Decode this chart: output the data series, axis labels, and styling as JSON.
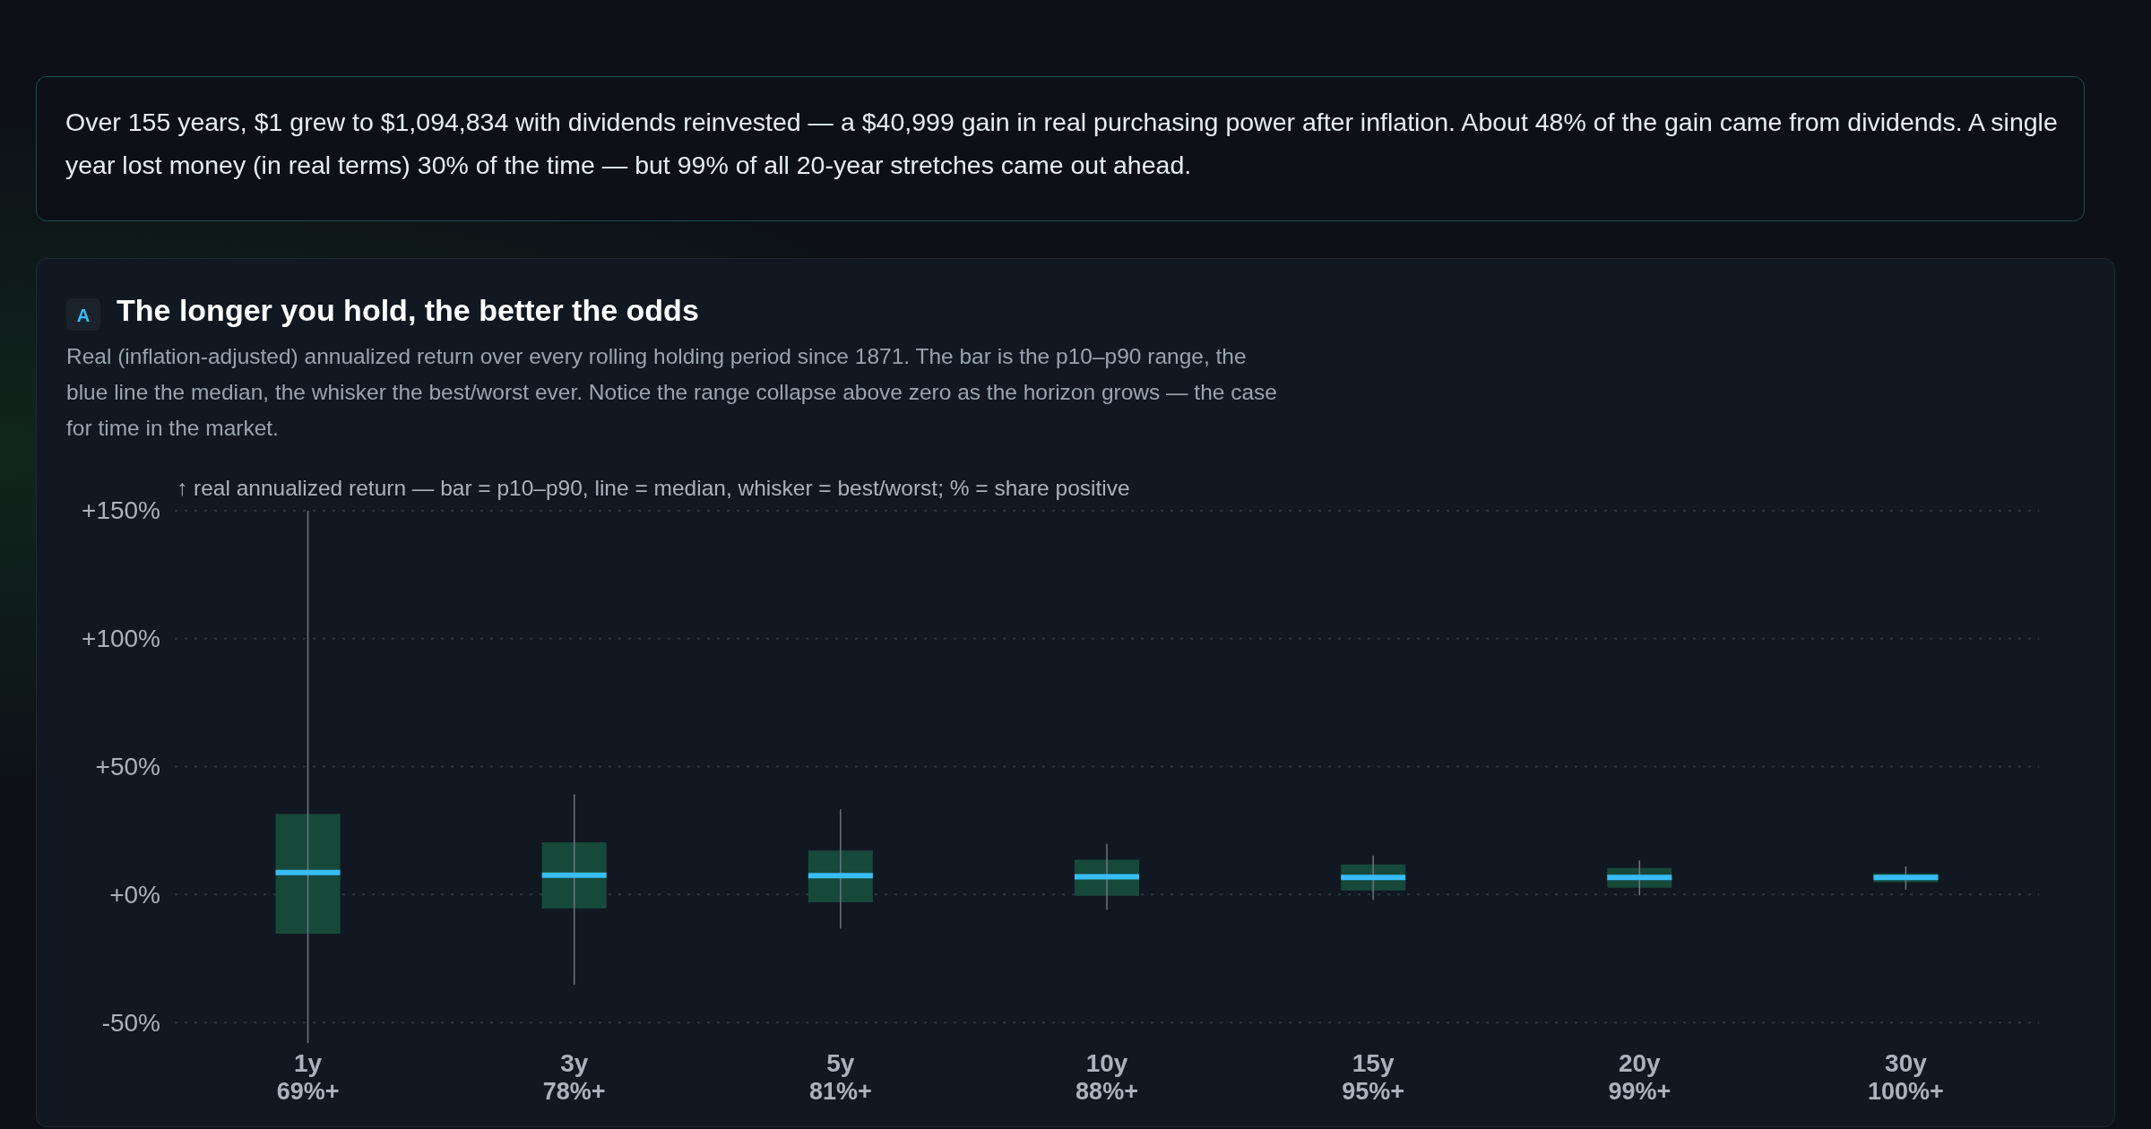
{
  "chart_data": {
    "type": "box",
    "title": "The longer you hold, the better the odds",
    "subtitle": "Real (inflation-adjusted) annualized return over every rolling holding period since 1871. The bar is the p10–p90 range, the blue line the median, the whisker the best/worst ever. Notice the range collapse above zero as the horizon grows — the case for time in the market.",
    "ylabel": "↑ real annualized return — bar = p10–p90, line = median, whisker = best/worst; % = share positive",
    "annotations": [
      "Over 155 years, $1 grew to $1,094,834 with dividends reinvested — a $40,999 gain in real purchasing power after inflation. About 48% of the gain came from dividends. A single year lost money (in real terms) 30% of the time — but 99% of all 20-year stretches came out ahead.",
      "A"
    ],
    "categories": [
      "1y",
      "3y",
      "5y",
      "10y",
      "15y",
      "20y",
      "30y"
    ],
    "series": [
      {
        "color": "#17493b",
        "value_labels": [
          "69%+",
          "78%+",
          "81%+",
          "88%+",
          "95%+",
          "99%+",
          "100%+"
        ],
        "boxes": [
          {
            "low": -58,
            "q1": -15.3,
            "median": 8.6,
            "q3": 31.5,
            "high": 150
          },
          {
            "low": -35.2,
            "q1": -5.4,
            "median": 7.6,
            "q3": 20.4,
            "high": 39.2
          },
          {
            "low": -13.3,
            "q1": -3,
            "median": 7.4,
            "q3": 17.2,
            "high": 33.3
          },
          {
            "low": -5.9,
            "q1": -0.5,
            "median": 7,
            "q3": 13.6,
            "high": 19.8
          },
          {
            "low": -2.1,
            "q1": 1.6,
            "median": 6.7,
            "q3": 11.8,
            "high": 15.2
          },
          {
            "low": -0.3,
            "q1": 2.7,
            "median": 6.7,
            "q3": 10.4,
            "high": 13.4
          },
          {
            "low": 1.9,
            "q1": 4.8,
            "median": 6.7,
            "q3": 8.3,
            "high": 11
          }
        ]
      }
    ],
    "ylim": [
      -58,
      150
    ],
    "yticks": [
      {
        "value": -50,
        "label": "-50%"
      },
      {
        "value": 0,
        "label": "+0%"
      },
      {
        "value": 50,
        "label": "+50%"
      },
      {
        "value": 100,
        "label": "+100%"
      },
      {
        "value": 150,
        "label": "+150%"
      }
    ],
    "grid": "y"
  }
}
